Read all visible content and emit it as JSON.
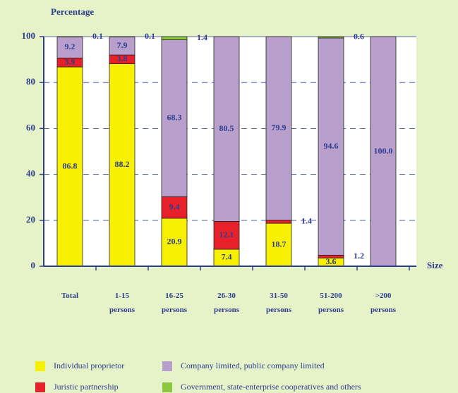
{
  "chart_data": {
    "type": "stacked_bar",
    "y_label": "Percentage",
    "x_label": "Size",
    "categories": [
      "Total",
      "1-15 persons",
      "16-25 persons",
      "26-30 persons",
      "31-50 persons",
      "51-200 persons",
      ">200 persons"
    ],
    "series": [
      {
        "name": "Individual proprietor",
        "color": "#f7f000",
        "values": [
          86.8,
          88.2,
          20.9,
          7.4,
          18.7,
          3.6,
          0
        ]
      },
      {
        "name": "Juristic partnership",
        "color": "#e8202a",
        "values": [
          3.9,
          3.8,
          9.4,
          12.1,
          1.4,
          1.2,
          0
        ]
      },
      {
        "name": "Company limited, public company limited",
        "color": "#b89fcc",
        "values": [
          9.2,
          7.9,
          68.3,
          80.5,
          79.9,
          94.6,
          100
        ],
        "value_labels": [
          "9.2",
          "7.9",
          "68.3",
          "80.5",
          "79.9",
          "94.6",
          "100.0"
        ]
      },
      {
        "name": "Government, state-enterprise cooperatives and others",
        "color": "#8dc63f",
        "values": [
          0.1,
          0.1,
          1.4,
          0,
          0,
          0.6,
          0
        ]
      }
    ],
    "ylim": [
      0,
      100
    ],
    "yticks": [
      0,
      20,
      40,
      60,
      80,
      100
    ],
    "grid": true
  }
}
